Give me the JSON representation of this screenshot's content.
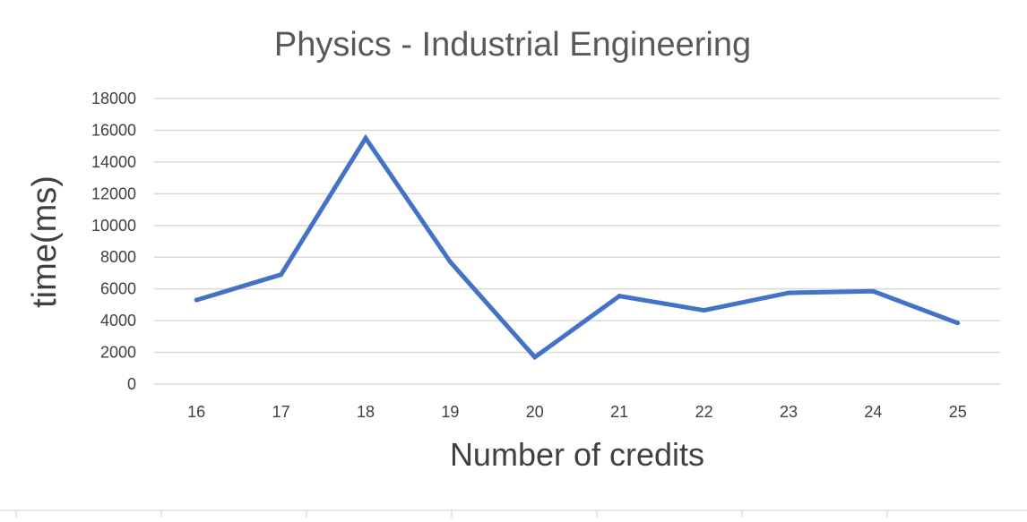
{
  "chart_data": {
    "type": "line",
    "title": "Physics - Industrial Engineering",
    "xlabel": "Number of credits",
    "ylabel": "time(ms)",
    "x": [
      "16",
      "17",
      "18",
      "19",
      "20",
      "21",
      "22",
      "23",
      "24",
      "25"
    ],
    "series": [
      {
        "values": [
          5300,
          6900,
          15500,
          7700,
          1700,
          5550,
          4650,
          5750,
          5850,
          3850
        ],
        "color": "#4472c4"
      }
    ],
    "ylim": [
      0,
      18000
    ],
    "yticks": [
      "0",
      "2000",
      "4000",
      "6000",
      "8000",
      "10000",
      "12000",
      "14000",
      "16000",
      "18000"
    ],
    "grid": true,
    "legend": "none"
  }
}
